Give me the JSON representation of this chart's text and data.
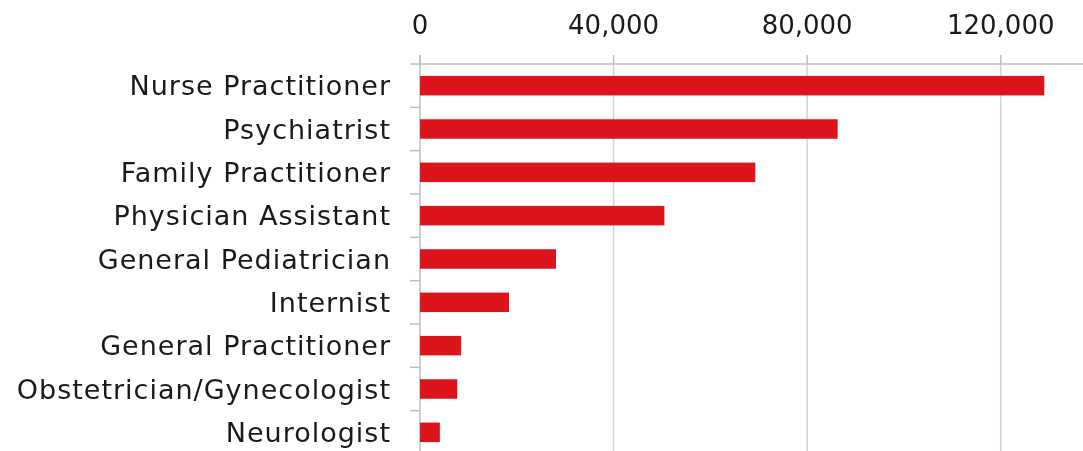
{
  "chart_data": {
    "type": "bar",
    "orientation": "horizontal",
    "categories": [
      "Nurse Practitioner",
      "Psychiatrist",
      "Family Practitioner",
      "Physician Assistant",
      "General Pediatrician",
      "Internist",
      "General Practitioner",
      "Obstetrician/Gynecologist",
      "Neurologist"
    ],
    "values": [
      129000,
      86300,
      69300,
      50500,
      28100,
      18400,
      8500,
      7700,
      4100
    ],
    "color": "#dc141c",
    "xlim": [
      0,
      137000
    ],
    "xticks": [
      0,
      {
        "value": 40000,
        "label": "40,000"
      },
      {
        "value": 80000,
        "label": "80,000"
      },
      {
        "value": 120000,
        "label": "120,000"
      }
    ],
    "grid": "x"
  }
}
